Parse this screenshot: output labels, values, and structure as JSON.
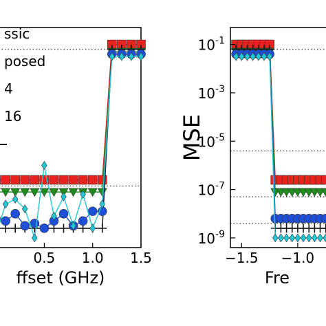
{
  "chart_data": [
    {
      "type": "line",
      "title": "",
      "xlabel": "ffset (GHz)",
      "ylabel": "",
      "xlim": [
        -0.1,
        1.5
      ],
      "ylim_log10": [
        -9.4,
        -0.3
      ],
      "y_scale": "log",
      "grid": false,
      "xticks": [
        {
          "value": 0.5,
          "label": "0.5"
        },
        {
          "value": 1.0,
          "label": "1.0"
        },
        {
          "value": 1.5,
          "label": "1.5"
        }
      ],
      "yticks": [],
      "legend": {
        "placement": "top-left",
        "entries": [
          "ssic",
          "posed",
          "4",
          "16",
          ""
        ]
      },
      "reference_lines_log10": [
        -1.2,
        -6.85
      ],
      "series": [
        {
          "color": "#e8231f",
          "marker": "square",
          "x": [
            0.0,
            0.1,
            0.2,
            0.3,
            0.4,
            0.5,
            0.6,
            0.7,
            0.8,
            0.9,
            1.0,
            1.1,
            1.2,
            1.3,
            1.4,
            1.5
          ],
          "y_log10": [
            -6.6,
            -6.6,
            -6.6,
            -6.6,
            -6.6,
            -6.6,
            -6.6,
            -6.6,
            -6.6,
            -6.6,
            -6.6,
            -6.6,
            -1.0,
            -1.0,
            -1.0,
            -1.0
          ]
        },
        {
          "color": "#1e8c1e",
          "marker": "triangle-down",
          "x": [
            0.0,
            0.1,
            0.2,
            0.3,
            0.4,
            0.5,
            0.6,
            0.7,
            0.8,
            0.9,
            1.0,
            1.1,
            1.2,
            1.3,
            1.4,
            1.5
          ],
          "y_log10": [
            -7.1,
            -7.1,
            -7.1,
            -7.1,
            -7.1,
            -7.1,
            -7.1,
            -7.1,
            -7.1,
            -7.1,
            -7.1,
            -7.1,
            -1.3,
            -1.3,
            -1.3,
            -1.3
          ]
        },
        {
          "color": "#111111",
          "marker": "plus",
          "x": [
            0.0,
            0.1,
            0.2,
            0.3,
            0.4,
            0.5,
            0.6,
            0.7,
            0.8,
            0.9,
            1.0,
            1.1,
            1.2,
            1.3,
            1.4,
            1.5
          ],
          "y_log10": [
            -8.6,
            -8.6,
            -8.6,
            -8.6,
            -8.6,
            -8.6,
            -8.6,
            -8.6,
            -8.6,
            -8.6,
            -8.6,
            -8.6,
            -1.2,
            -1.2,
            -1.2,
            -1.2
          ]
        },
        {
          "color": "#1f4fd6",
          "marker": "circle",
          "x": [
            0.0,
            0.1,
            0.2,
            0.3,
            0.4,
            0.5,
            0.6,
            0.7,
            0.8,
            0.9,
            1.0,
            1.1,
            1.2,
            1.3,
            1.4,
            1.5
          ],
          "y_log10": [
            -8.2,
            -8.3,
            -8.0,
            -8.5,
            -8.4,
            -8.6,
            -8.3,
            -8.0,
            -8.5,
            -8.3,
            -7.9,
            -7.9,
            -1.4,
            -1.4,
            -1.4,
            -1.4
          ]
        },
        {
          "color": "#22c7d6",
          "marker": "diamond",
          "x": [
            0.0,
            0.1,
            0.2,
            0.3,
            0.4,
            0.5,
            0.6,
            0.7,
            0.8,
            0.9,
            1.0,
            1.1,
            1.2,
            1.3,
            1.4,
            1.5
          ],
          "y_log10": [
            -8.9,
            -7.6,
            -7.4,
            -7.8,
            -9.0,
            -6.0,
            -8.1,
            -7.3,
            -8.5,
            -7.2,
            -8.6,
            -7.6,
            -1.5,
            -1.5,
            -1.5,
            -1.5
          ]
        }
      ]
    },
    {
      "type": "line",
      "title": "",
      "xlabel": "Fre",
      "ylabel": "MSE",
      "xlim": [
        -1.6,
        -0.65
      ],
      "ylim_log10": [
        -9.4,
        -0.3
      ],
      "y_scale": "log",
      "grid": false,
      "xticks": [
        {
          "value": -1.5,
          "label": "−1.5"
        },
        {
          "value": -1.0,
          "label": "−1.0"
        }
      ],
      "yticks": [
        {
          "value": -1,
          "label": "10",
          "exp": "-1"
        },
        {
          "value": -3,
          "label": "10",
          "exp": "-3"
        },
        {
          "value": -5,
          "label": "10",
          "exp": "-5"
        },
        {
          "value": -7,
          "label": "10",
          "exp": "-7"
        },
        {
          "value": -9,
          "label": "10",
          "exp": "-9"
        }
      ],
      "legend": null,
      "reference_lines_log10": [
        -1.2,
        -5.4,
        -7.3,
        -8.4
      ],
      "series": [
        {
          "color": "#e8231f",
          "marker": "square",
          "x": [
            -1.55,
            -1.5,
            -1.45,
            -1.4,
            -1.35,
            -1.3,
            -1.25,
            -1.2,
            -1.15,
            -1.1,
            -1.05,
            -1.0,
            -0.95,
            -0.9,
            -0.85,
            -0.8,
            -0.75,
            -0.7
          ],
          "y_log10": [
            -1.0,
            -1.0,
            -1.0,
            -1.0,
            -1.0,
            -1.0,
            -1.0,
            -6.6,
            -6.6,
            -6.6,
            -6.6,
            -6.6,
            -6.6,
            -6.6,
            -6.6,
            -6.6,
            -6.6,
            -6.6
          ]
        },
        {
          "color": "#1e8c1e",
          "marker": "triangle-down",
          "x": [
            -1.55,
            -1.5,
            -1.45,
            -1.4,
            -1.35,
            -1.3,
            -1.25,
            -1.2,
            -1.15,
            -1.1,
            -1.05,
            -1.0,
            -0.95,
            -0.9,
            -0.85,
            -0.8,
            -0.75,
            -0.7
          ],
          "y_log10": [
            -1.3,
            -1.3,
            -1.3,
            -1.3,
            -1.3,
            -1.3,
            -1.3,
            -7.1,
            -7.1,
            -7.1,
            -7.1,
            -7.1,
            -7.1,
            -7.1,
            -7.1,
            -7.1,
            -7.1,
            -7.1
          ]
        },
        {
          "color": "#111111",
          "marker": "plus",
          "x": [
            -1.55,
            -1.5,
            -1.45,
            -1.4,
            -1.35,
            -1.3,
            -1.25,
            -1.2,
            -1.15,
            -1.1,
            -1.05,
            -1.0,
            -0.95,
            -0.9,
            -0.85,
            -0.8,
            -0.75,
            -0.7
          ],
          "y_log10": [
            -1.2,
            -1.2,
            -1.2,
            -1.2,
            -1.2,
            -1.2,
            -1.2,
            -8.6,
            -8.6,
            -8.6,
            -8.6,
            -8.6,
            -8.6,
            -8.6,
            -8.6,
            -8.6,
            -8.6,
            -8.6
          ]
        },
        {
          "color": "#1f4fd6",
          "marker": "circle",
          "x": [
            -1.55,
            -1.5,
            -1.45,
            -1.4,
            -1.35,
            -1.3,
            -1.25,
            -1.2,
            -1.15,
            -1.1,
            -1.05,
            -1.0,
            -0.95,
            -0.9,
            -0.85,
            -0.8,
            -0.75,
            -0.7
          ],
          "y_log10": [
            -1.4,
            -1.4,
            -1.4,
            -1.4,
            -1.4,
            -1.4,
            -1.4,
            -8.2,
            -8.2,
            -8.2,
            -8.2,
            -8.2,
            -8.2,
            -8.2,
            -8.2,
            -8.2,
            -8.2,
            -8.2
          ]
        },
        {
          "color": "#22c7d6",
          "marker": "diamond",
          "x": [
            -1.55,
            -1.5,
            -1.45,
            -1.4,
            -1.35,
            -1.3,
            -1.25,
            -1.2,
            -1.15,
            -1.1,
            -1.05,
            -1.0,
            -0.95,
            -0.9,
            -0.85,
            -0.8,
            -0.75,
            -0.7
          ],
          "y_log10": [
            -1.5,
            -1.5,
            -1.5,
            -1.5,
            -1.5,
            -1.5,
            -1.5,
            -9.0,
            -9.0,
            -9.0,
            -9.0,
            -9.0,
            -9.0,
            -9.0,
            -9.0,
            -9.0,
            -9.0,
            -9.0
          ]
        }
      ]
    }
  ]
}
